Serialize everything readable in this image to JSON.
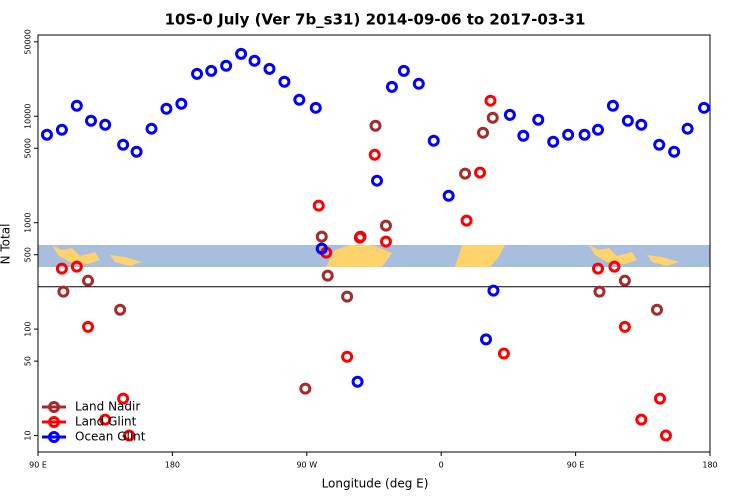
{
  "chart_data": {
    "type": "scatter",
    "title": "10S-0 July (Ver 7b_s31)   2014-09-06 to 2017-03-31",
    "x_label": "Longitude (deg E)",
    "y_label": "N Total",
    "log_y": true,
    "xlim": [
      90,
      540
    ],
    "ylim": [
      7,
      58000
    ],
    "xticks": [
      {
        "value": 90,
        "label": "90 E"
      },
      180,
      {
        "value": 270,
        "label": "90 W"
      },
      {
        "value": 360,
        "label": "0"
      },
      {
        "value": 450,
        "label": "90 E"
      },
      {
        "value": 540,
        "label": "180"
      }
    ],
    "yticks": [
      10,
      50,
      100,
      500,
      1000,
      5000,
      10000,
      50000
    ],
    "reference_line": 250,
    "legend": "lower left",
    "series": [
      {
        "name": "Land Nadir",
        "color": "#a52a2a",
        "x": [
          107,
          123.5,
          145,
          269,
          280,
          284,
          297,
          306,
          316,
          323,
          376,
          388,
          394.5,
          466,
          483,
          504.5
        ],
        "values": [
          225,
          285,
          152,
          27.6,
          740,
          318,
          202,
          740,
          8150,
          937,
          2890,
          7000,
          9690,
          225,
          285,
          152
        ]
      },
      {
        "name": "Land Glint",
        "color": "#ff0000",
        "x": [
          106,
          116,
          123.5,
          147,
          151,
          135,
          278,
          283,
          297,
          305.5,
          315.5,
          323,
          377,
          386,
          393,
          402,
          465,
          476,
          483,
          494,
          506.5,
          510.5
        ],
        "values": [
          370,
          386,
          105,
          22.2,
          10,
          14.1,
          1445,
          523,
          55,
          723,
          4350,
          663,
          1045,
          2950,
          14000,
          58.9,
          370,
          386,
          105,
          14.1,
          22.2,
          10
        ]
      },
      {
        "name": "Ocean Glint",
        "color": "#0000ff",
        "x": [
          96,
          106,
          116,
          125.5,
          135,
          147,
          156,
          166,
          176,
          186,
          196.5,
          206,
          216,
          226,
          235,
          245,
          255,
          265,
          276,
          280,
          304,
          317,
          327,
          335,
          345,
          355,
          365,
          395,
          390,
          406,
          415,
          425,
          435,
          445,
          456,
          465,
          475,
          485,
          494,
          506,
          516,
          525,
          536
        ],
        "values": [
          6700,
          7470,
          12560,
          9070,
          8320,
          5400,
          4640,
          7640,
          11750,
          13100,
          25000,
          26700,
          29800,
          38600,
          33200,
          27900,
          21100,
          14300,
          12000,
          570,
          32,
          2480,
          18900,
          26700,
          20200,
          5890,
          1790,
          230,
          80,
          10300,
          6560,
          9270,
          5760,
          6700,
          6700,
          7470,
          12560,
          9070,
          8320,
          5400,
          4640,
          7640,
          12000
        ]
      }
    ]
  }
}
